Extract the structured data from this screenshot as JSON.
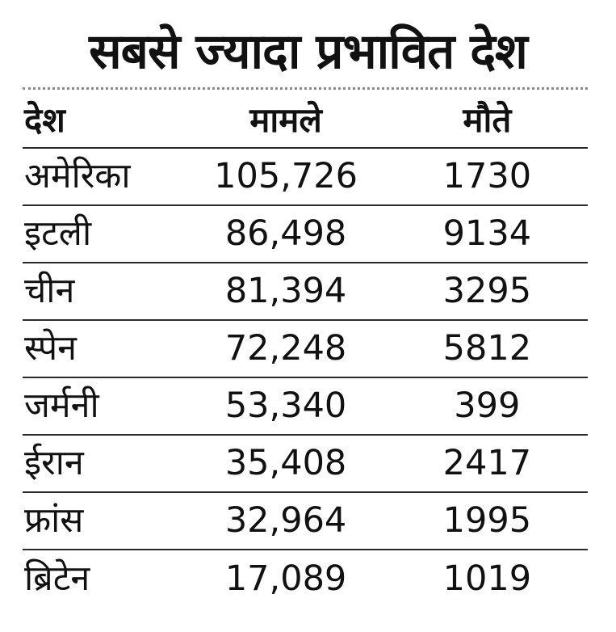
{
  "title": "सबसे ज्यादा प्रभावित देश",
  "table": {
    "headers": [
      "देश",
      "मामले",
      "मौते"
    ],
    "rows": [
      [
        "अमेरिका",
        "105,726",
        "1730"
      ],
      [
        "इटली",
        "86,498",
        "9134"
      ],
      [
        "चीन",
        "81,394",
        "3295"
      ],
      [
        "स्पेन",
        "72,248",
        "5812"
      ],
      [
        "जर्मनी",
        "53,340",
        "399"
      ],
      [
        "ईरान",
        "35,408",
        "2417"
      ],
      [
        "फ्रांस",
        "32,964",
        "1995"
      ],
      [
        "ब्रिटेन",
        "17,089",
        "1019"
      ]
    ]
  }
}
